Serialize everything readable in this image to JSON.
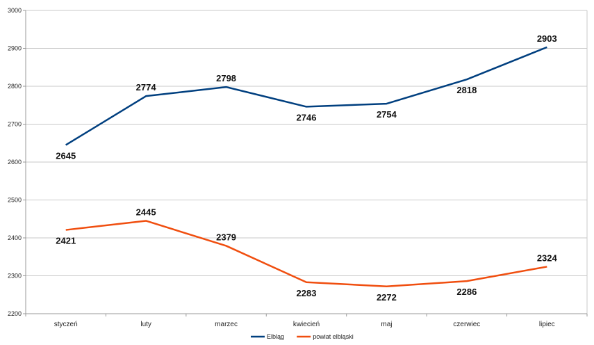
{
  "chart_data": {
    "type": "line",
    "categories": [
      "styczeń",
      "luty",
      "marzec",
      "kwiecień",
      "maj",
      "czerwiec",
      "lipiec"
    ],
    "ylim": [
      2200,
      3000
    ],
    "yticks": [
      2200,
      2300,
      2400,
      2500,
      2600,
      2700,
      2800,
      2900,
      3000
    ],
    "grid": true,
    "legend_position": "bottom",
    "series": [
      {
        "name": "Elbląg",
        "color": "#003f7f",
        "values": [
          2645,
          2774,
          2798,
          2746,
          2754,
          2818,
          2903
        ],
        "label_side": [
          "below",
          "above",
          "above",
          "below",
          "below",
          "below",
          "above"
        ]
      },
      {
        "name": "powiat elbląski",
        "color": "#f04e0f",
        "values": [
          2421,
          2445,
          2379,
          2283,
          2272,
          2286,
          2324
        ],
        "label_side": [
          "below",
          "above",
          "above",
          "below",
          "below",
          "below",
          "above"
        ]
      }
    ]
  }
}
